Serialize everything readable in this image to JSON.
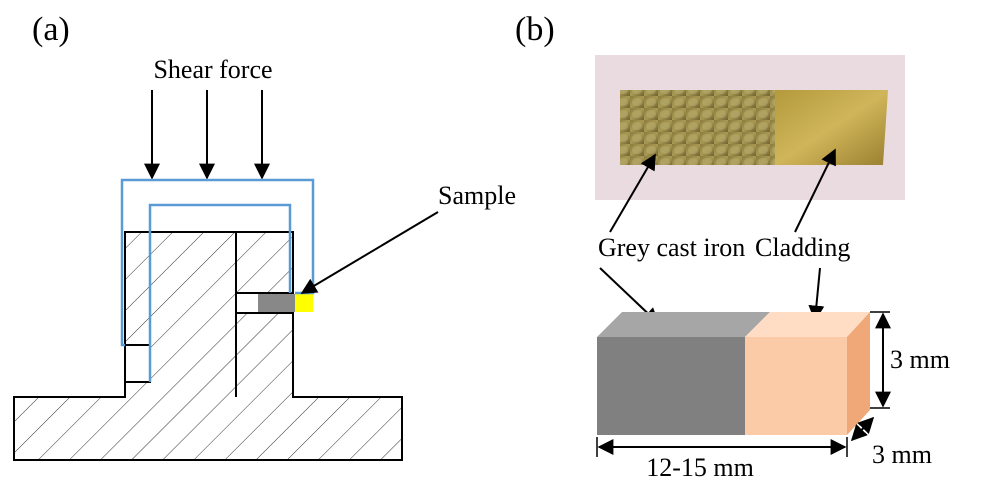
{
  "panel_a": {
    "label": "(a)",
    "force_label": "Shear force",
    "sample_label": "Sample"
  },
  "panel_b": {
    "label": "(b)",
    "grey_label": "Grey cast iron",
    "cladding_label": "Cladding",
    "height_label": "3 mm",
    "depth_label": "3 mm",
    "length_label": "12-15 mm"
  }
}
